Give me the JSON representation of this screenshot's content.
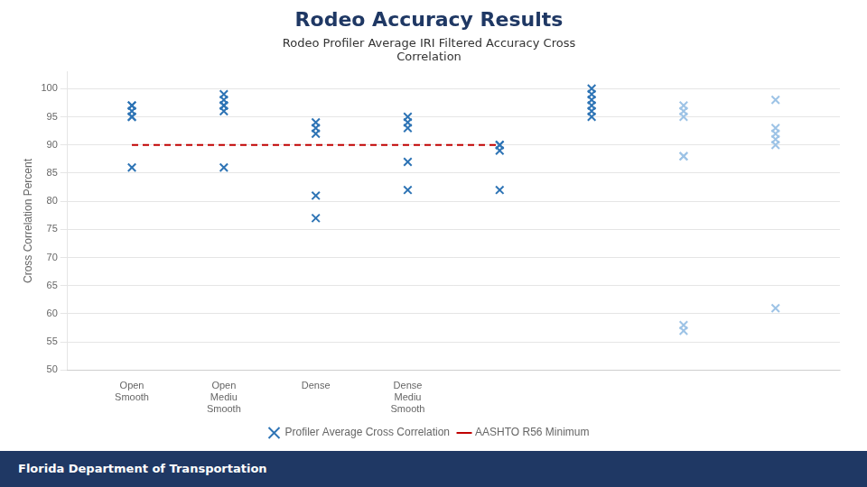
{
  "chart_data": {
    "type": "scatter",
    "title": "Rodeo Accuracy Results",
    "subtitle": "Rodeo Profiler Average IRI Filtered Accuracy Cross\nCorrelation",
    "ylabel": "Cross Correlation Percent",
    "annotations": [
      "Florida Department of Transportation"
    ],
    "categories": [
      "Open\nSmooth",
      "Open\nMediu\nSmooth",
      "Dense",
      "Dense\nMediu\nSmooth",
      null,
      null,
      null,
      null
    ],
    "series": [
      {
        "name": "Profiler Average Cross Correlation",
        "type": "scatter",
        "marker": "x",
        "colors": [
          "#2E74B5",
          "#2E74B5",
          "#2E74B5",
          "#2E74B5",
          "#2E74B5",
          "#2E74B5",
          "#9DC3E6",
          "#9DC3E6"
        ],
        "values": [
          [
            97,
            97,
            96,
            95,
            95,
            86
          ],
          [
            99,
            98,
            97,
            97,
            96,
            86
          ],
          [
            94,
            93,
            92,
            81,
            77
          ],
          [
            95,
            94,
            93,
            87,
            82
          ],
          [
            90,
            90,
            89,
            82
          ],
          [
            100,
            99,
            98,
            97,
            96,
            95
          ],
          [
            97,
            96,
            95,
            88,
            88,
            58,
            57
          ],
          [
            98,
            93,
            92,
            91,
            90,
            61
          ]
        ]
      },
      {
        "name": "AASHTO R56 Minimum",
        "type": "line",
        "line_style": "dashed",
        "color": "#C00000",
        "values": [
          90,
          90,
          90,
          90,
          90,
          null,
          null,
          null
        ]
      }
    ],
    "ylim": [
      50,
      103
    ],
    "yticks": [
      50,
      55,
      60,
      65,
      70,
      75,
      80,
      85,
      90,
      95,
      100
    ],
    "grid": true,
    "legend": "bottom"
  }
}
